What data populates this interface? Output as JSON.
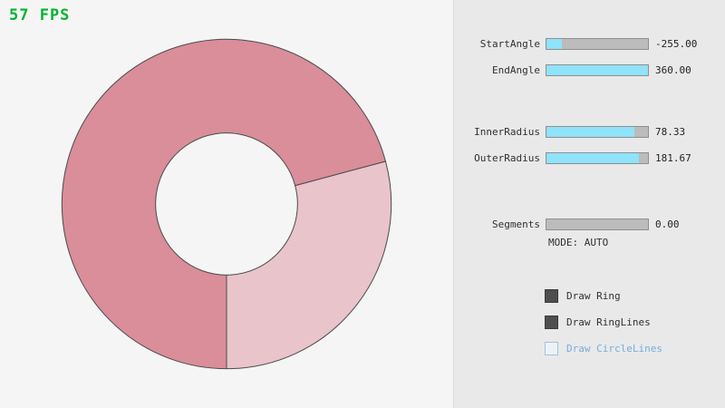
{
  "fps": {
    "text": "57 FPS",
    "value": 57,
    "color": "#00b42e"
  },
  "panel": {
    "sliders": [
      {
        "label": "StartAngle",
        "value": "-255.00",
        "fill": 0.15
      },
      {
        "label": "EndAngle",
        "value": "360.00",
        "fill": 1.0
      },
      {
        "label": "InnerRadius",
        "value": "78.33",
        "fill": 0.87
      },
      {
        "label": "OuterRadius",
        "value": "181.67",
        "fill": 0.91
      },
      {
        "label": "Segments",
        "value": "0.00",
        "fill": 0.0
      }
    ],
    "mode_text": "MODE: AUTO",
    "checkboxes": [
      {
        "label": "Draw Ring",
        "checked": true
      },
      {
        "label": "Draw RingLines",
        "checked": true
      },
      {
        "label": "Draw CircleLines",
        "checked": false
      }
    ],
    "colors": {
      "slider_fill": "#8fe3fa",
      "slider_track": "#bcbcbc",
      "checkbox_checked": "#4f4f4f",
      "unchecked_label": "#74aede",
      "panel_bg": "#e9e9e9"
    }
  },
  "chart_data": {
    "type": "pie",
    "title": "",
    "center": [
      250,
      225
    ],
    "inner_radius": 78.33,
    "outer_radius": 181.67,
    "start_angle": -255,
    "end_angle": 360,
    "unit": "degrees",
    "stroke": "#4a4a4a",
    "background": "#f5f5f5",
    "segments": [
      {
        "name": "dark",
        "start_deg": 15,
        "end_deg": 270,
        "sweep_deg": 255,
        "color": "#d98e9a"
      },
      {
        "name": "light",
        "start_deg": -90,
        "end_deg": 15,
        "sweep_deg": 105,
        "color": "#e9c4ca"
      }
    ]
  }
}
